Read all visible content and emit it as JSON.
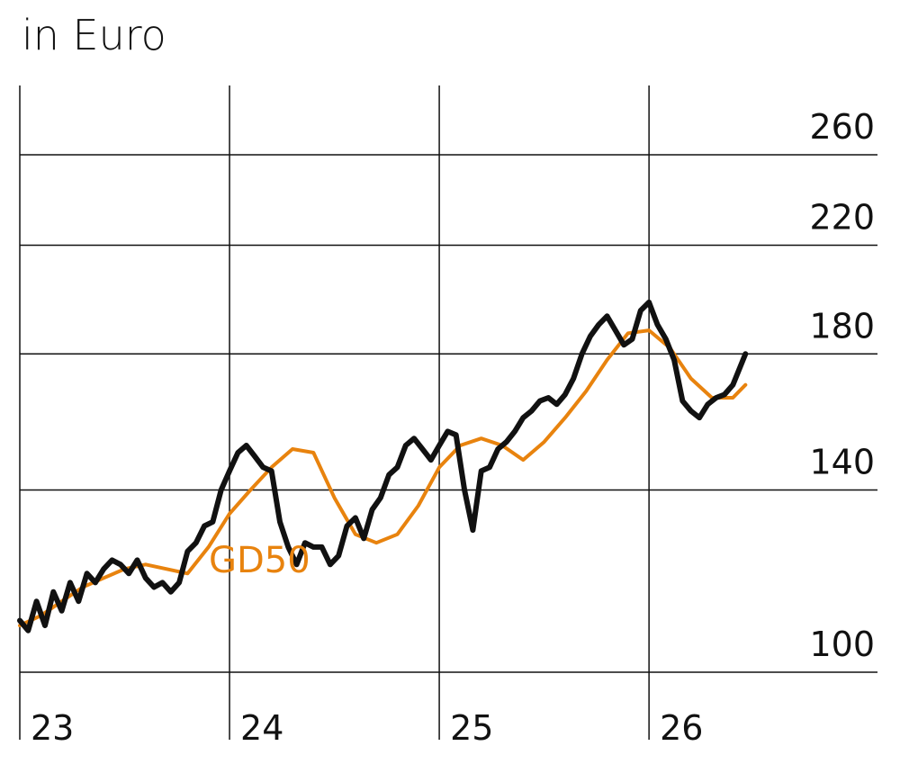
{
  "title": "in Euro",
  "colors": {
    "price": "#111111",
    "gd50": "#E8830E",
    "grid": "#111111"
  },
  "chart_data": {
    "type": "line",
    "title": "in Euro",
    "y_scale": "log",
    "ylim": [
      100,
      260
    ],
    "y_ticks": [
      100,
      140,
      180,
      220,
      260
    ],
    "y_tick_labels": [
      "100",
      "140",
      "180",
      "220",
      "260"
    ],
    "xlim": [
      2023.0,
      2026.45
    ],
    "x_ticks": [
      2023,
      2024,
      2025,
      2026
    ],
    "x_tick_labels": [
      "23",
      "24",
      "25",
      "26"
    ],
    "grid": true,
    "series": [
      {
        "key": "price",
        "x": [
          2023.0,
          2023.04,
          2023.08,
          2023.12,
          2023.16,
          2023.2,
          2023.24,
          2023.28,
          2023.32,
          2023.36,
          2023.4,
          2023.44,
          2023.48,
          2023.52,
          2023.56,
          2023.6,
          2023.64,
          2023.68,
          2023.72,
          2023.76,
          2023.8,
          2023.84,
          2023.88,
          2023.92,
          2023.96,
          2024.0,
          2024.04,
          2024.08,
          2024.12,
          2024.16,
          2024.2,
          2024.24,
          2024.28,
          2024.32,
          2024.36,
          2024.4,
          2024.44,
          2024.48,
          2024.52,
          2024.56,
          2024.6,
          2024.64,
          2024.68,
          2024.72,
          2024.76,
          2024.8,
          2024.84,
          2024.88,
          2024.92,
          2024.96,
          2025.0,
          2025.04,
          2025.08,
          2025.12,
          2025.16,
          2025.2,
          2025.24,
          2025.28,
          2025.32,
          2025.36,
          2025.4,
          2025.44,
          2025.48,
          2025.52,
          2025.56,
          2025.6,
          2025.64,
          2025.68,
          2025.72,
          2025.76,
          2025.8,
          2025.84,
          2025.88,
          2025.92,
          2025.96,
          2026.0,
          2026.04,
          2026.08,
          2026.12,
          2026.16,
          2026.2,
          2026.24,
          2026.28,
          2026.32,
          2026.36,
          2026.4,
          2026.46
        ],
        "values": [
          110,
          108,
          114,
          109,
          116,
          112,
          118,
          114,
          120,
          118,
          121,
          123,
          122,
          120,
          123,
          119,
          117,
          118,
          116,
          118,
          125,
          127,
          131,
          132,
          140,
          145,
          150,
          152,
          149,
          146,
          145,
          132,
          126,
          122,
          127,
          126,
          126,
          122,
          124,
          131,
          133,
          128,
          135,
          138,
          144,
          146,
          152,
          154,
          151,
          148,
          152,
          156,
          155,
          140,
          130,
          145,
          146,
          151,
          153,
          156,
          160,
          162,
          165,
          166,
          164,
          167,
          172,
          180,
          186,
          190,
          193,
          188,
          183,
          185,
          195,
          198,
          190,
          185,
          178,
          165,
          162,
          160,
          164,
          166,
          167,
          170,
          180
        ]
      },
      {
        "key": "gd50",
        "name": "GD50",
        "x": [
          2023.0,
          2023.1,
          2023.2,
          2023.3,
          2023.4,
          2023.5,
          2023.6,
          2023.7,
          2023.8,
          2023.9,
          2024.0,
          2024.1,
          2024.2,
          2024.3,
          2024.4,
          2024.5,
          2024.6,
          2024.7,
          2024.8,
          2024.9,
          2025.0,
          2025.1,
          2025.2,
          2025.3,
          2025.4,
          2025.5,
          2025.6,
          2025.7,
          2025.8,
          2025.9,
          2026.0,
          2026.1,
          2026.2,
          2026.3,
          2026.4,
          2026.46
        ],
        "values": [
          109,
          111,
          114,
          117,
          119,
          121,
          122,
          121,
          120,
          126,
          134,
          140,
          146,
          151,
          150,
          138,
          129,
          127,
          129,
          136,
          146,
          152,
          154,
          152,
          148,
          153,
          160,
          168,
          178,
          187,
          188,
          182,
          172,
          166,
          166,
          170
        ]
      }
    ]
  }
}
